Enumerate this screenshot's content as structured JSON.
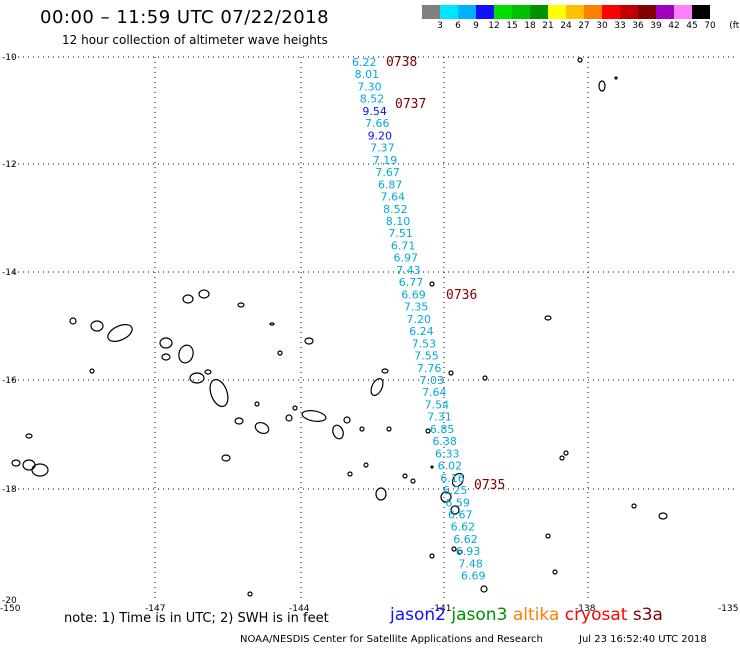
{
  "header": {
    "title": "00:00 – 11:59 UTC 07/22/2018",
    "subtitle": "12 hour collection of altimeter wave heights"
  },
  "colorbar": {
    "colors": [
      "#7f7f7f",
      "#00e5ff",
      "#00b0ff",
      "#1010ff",
      "#00e000",
      "#00c000",
      "#009000",
      "#ffff00",
      "#ffc000",
      "#ff8000",
      "#ff0000",
      "#c00000",
      "#800000",
      "#a000c0",
      "#ff80ff",
      "#000000"
    ],
    "labels": [
      "3",
      "6",
      "9",
      "12",
      "15",
      "18",
      "21",
      "24",
      "27",
      "30",
      "33",
      "36",
      "39",
      "42",
      "45",
      "70",
      "(ft)"
    ]
  },
  "axes": {
    "lat_labels": [
      "-10",
      "-12",
      "-14",
      "-16",
      "-18",
      "-20"
    ],
    "lon_labels": [
      "-150",
      "-147",
      "-144",
      "-141",
      "-138",
      "-135"
    ]
  },
  "track": {
    "color": "#00aadd",
    "values": [
      "6.22",
      "8.01",
      "7.30",
      "8.52",
      "9.54",
      "7.66",
      "9.20",
      "7.37",
      "7.19",
      "7.67",
      "6.87",
      "7.64",
      "8.52",
      "8.10",
      "7.51",
      "6.71",
      "6.97",
      "7.43",
      "6.77",
      "6.69",
      "7.35",
      "7.20",
      "6.24",
      "7.53",
      "7.55",
      "7.76",
      "7.03",
      "7.64",
      "7.54",
      "7.31",
      "6.85",
      "6.38",
      "6.33",
      "6.02",
      "6.16",
      "6.25",
      "6.59",
      "6.67",
      "6.62",
      "6.62",
      "6.93",
      "7.48",
      "6.69"
    ],
    "value_colors": {
      "9.54": "#1010ff",
      "9.20": "#1010ff"
    }
  },
  "times": {
    "color": "#800000",
    "labels": [
      "0738",
      "0737",
      "0736",
      "0735"
    ]
  },
  "note": "note: 1) Time is in UTC; 2) SWH is in feet",
  "missions": [
    {
      "name": "jason2",
      "color": "#1010ff"
    },
    {
      "name": "jason3",
      "color": "#009000"
    },
    {
      "name": "altika",
      "color": "#ff8000"
    },
    {
      "name": "cryosat",
      "color": "#ff0000"
    },
    {
      "name": "s3a",
      "color": "#800000"
    }
  ],
  "footer": {
    "credit": "NOAA/NESDIS Center for Satellite Applications and Research",
    "timestamp": "Jul 23 16:52:40 UTC 2018"
  }
}
